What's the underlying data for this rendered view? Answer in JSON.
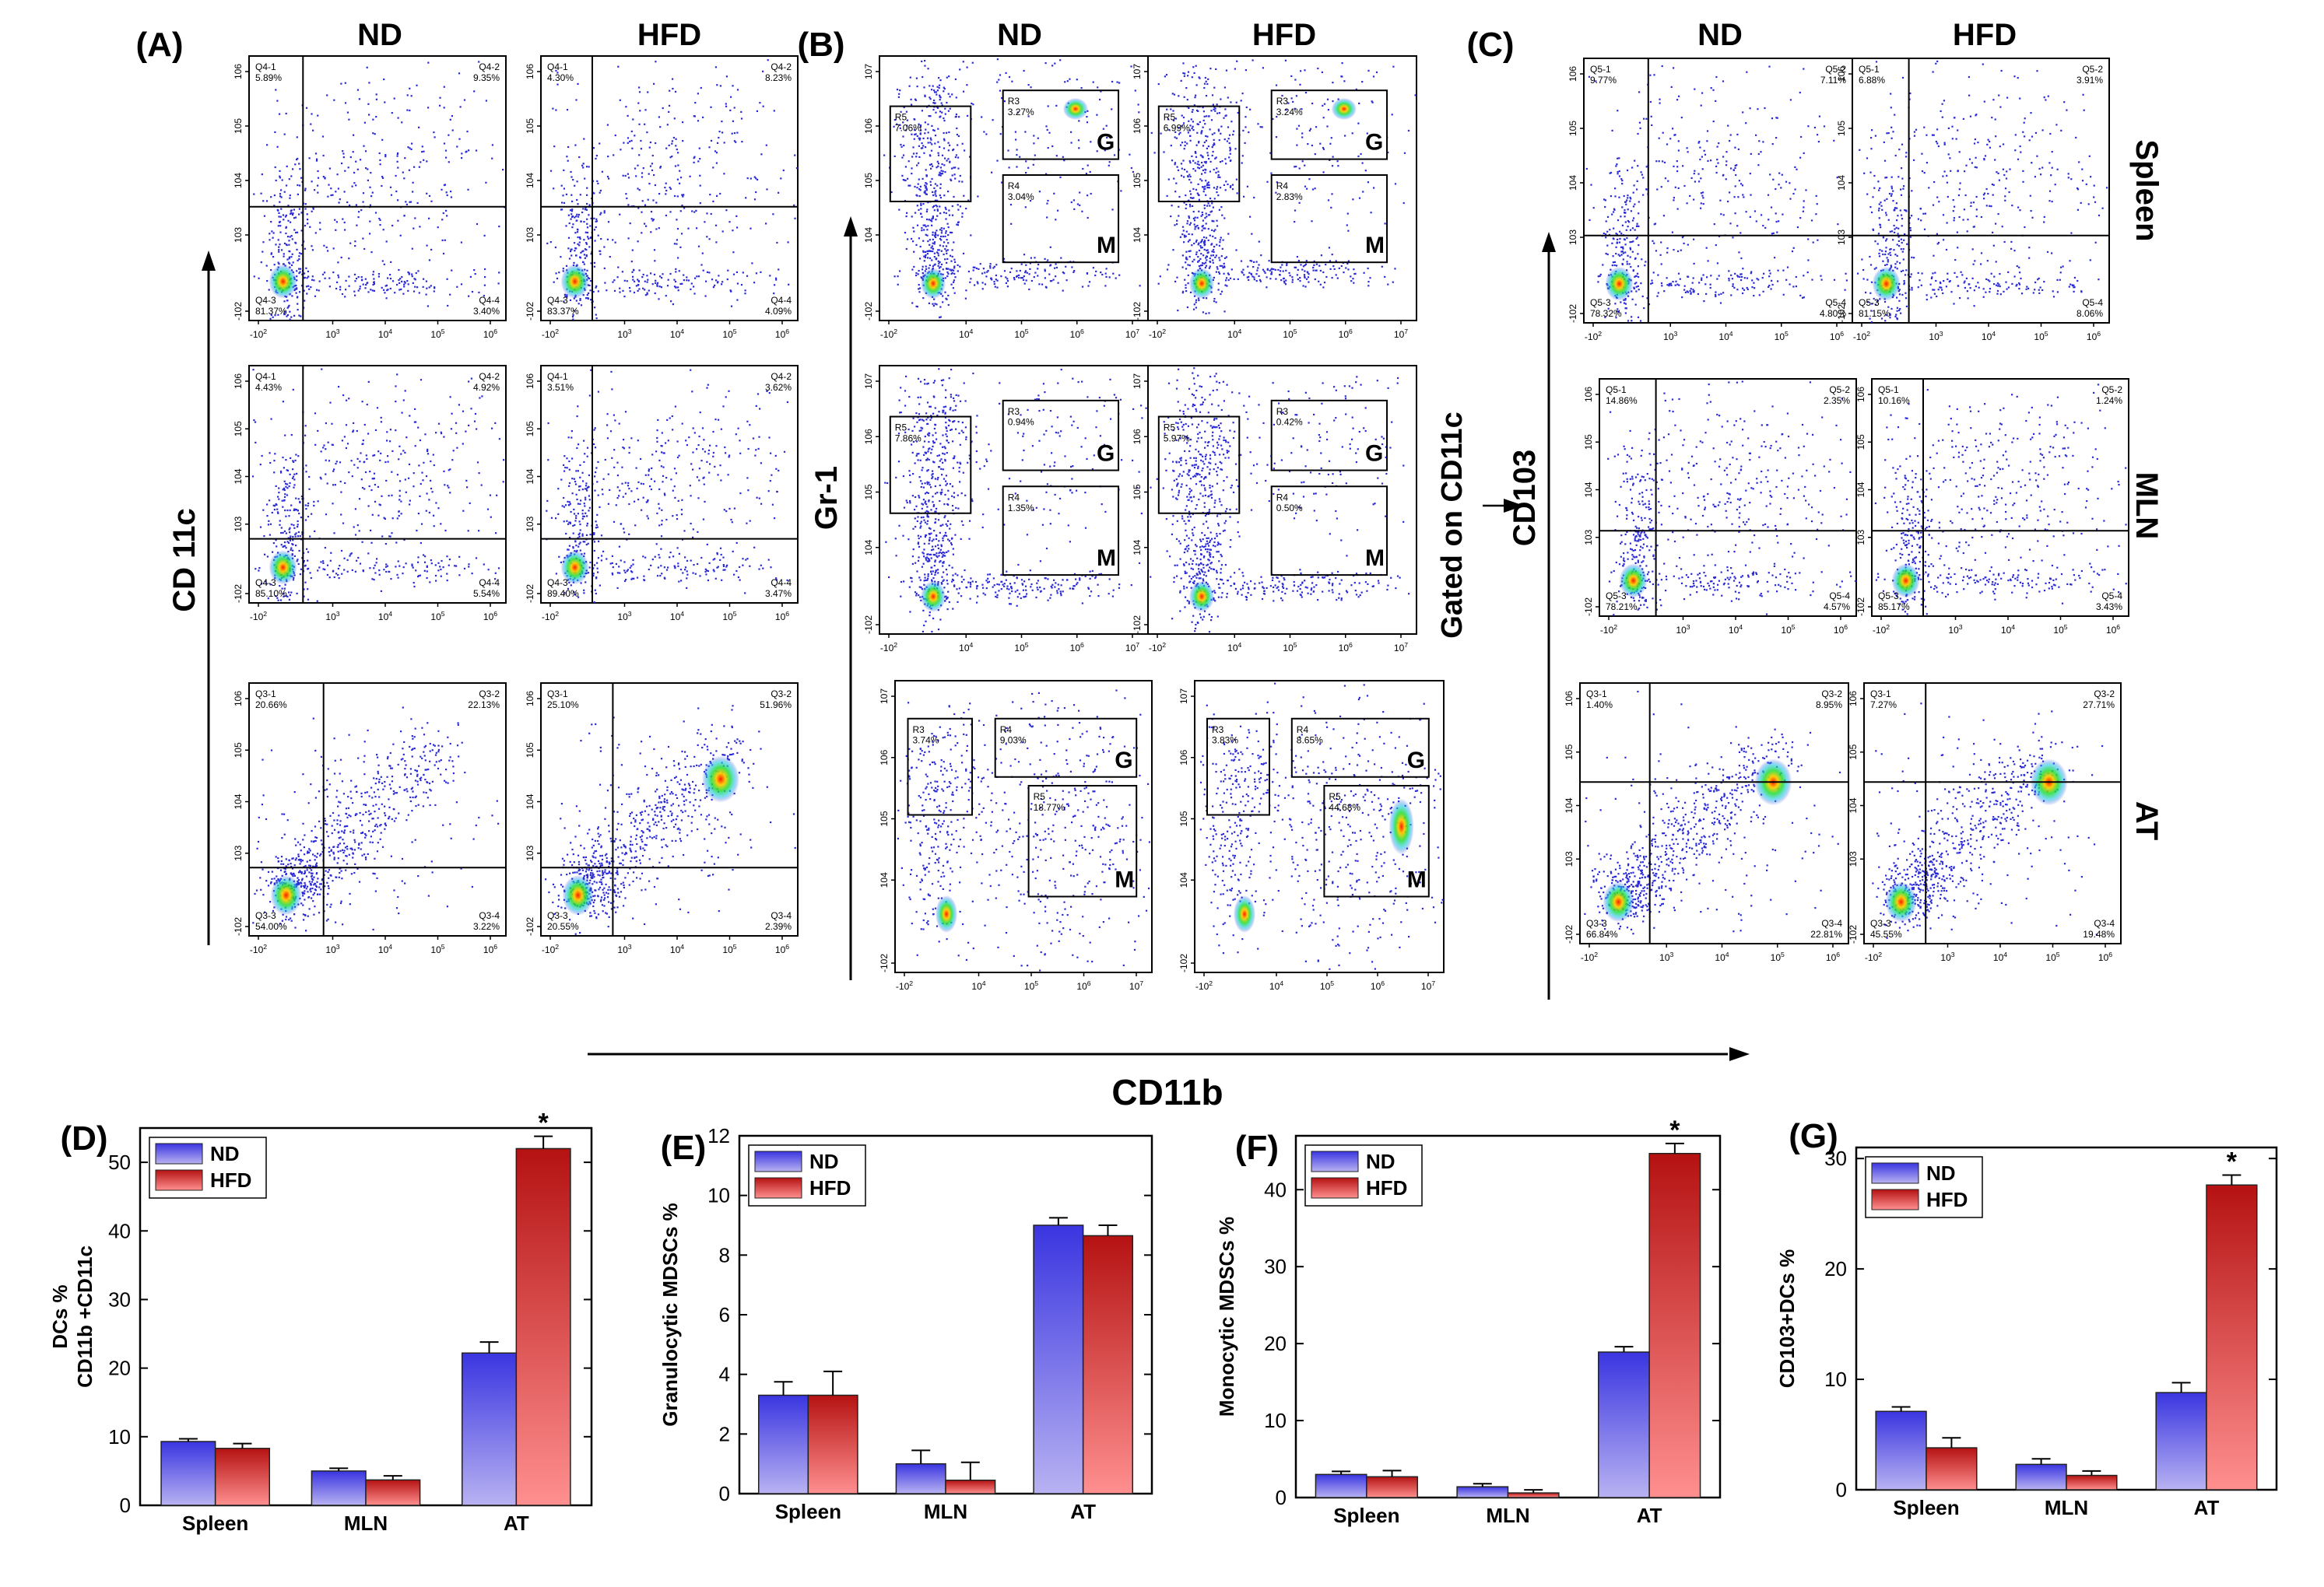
{
  "figure": {
    "col_nd": "ND",
    "col_hfd": "HFD",
    "bottom_axis_label": "CD11b",
    "gated_label": "Gated on CD11c",
    "colors": {
      "nd_top": "#3a35e0",
      "nd_bottom": "#b8b2f2",
      "hfd_top": "#b51212",
      "hfd_bottom": "#ff8f8f",
      "dots": "#2a2ad8",
      "gate": "#000000"
    }
  },
  "panels": {
    "A": {
      "label": "(A)",
      "y_axis": "CD 11c"
    },
    "B": {
      "label": "(B)",
      "y_axis": "Gr-1"
    },
    "C": {
      "label": "(C)",
      "y_axis": "CD103",
      "row_labels": [
        "Spleen",
        "MLN",
        "AT"
      ]
    }
  },
  "flow_plots": {
    "A": [
      {
        "nd": {
          "q1": "Q4-1\n5.89%",
          "q2": "Q4-2\n9.35%",
          "q3": "Q4-3\n81.37%",
          "q4": "Q4-4\n3.40%"
        },
        "hfd": {
          "q1": "Q4-1\n4.30%",
          "q2": "Q4-2\n8.23%",
          "q3": "Q4-3\n83.37%",
          "q4": "Q4-4\n4.09%"
        }
      },
      {
        "nd": {
          "q1": "Q4-1\n4.43%",
          "q2": "Q4-2\n4.92%",
          "q3": "Q4-3\n85.10%",
          "q4": "Q4-4\n5.54%"
        },
        "hfd": {
          "q1": "Q4-1\n3.51%",
          "q2": "Q4-2\n3.62%",
          "q3": "Q4-3\n89.40%",
          "q4": "Q4-4\n3.47%"
        }
      },
      {
        "nd": {
          "q1": "Q3-1\n20.66%",
          "q2": "Q3-2\n22.13%",
          "q3": "Q3-3\n54.00%",
          "q4": "Q3-4\n3.22%"
        },
        "hfd": {
          "q1": "Q3-1\n25.10%",
          "q2": "Q3-2\n51.96%",
          "q3": "Q3-3\n20.55%",
          "q4": "Q3-4\n2.39%"
        }
      }
    ],
    "B": [
      {
        "nd": {
          "r5": "R5\n7.06%",
          "r3": "R3\n3.27%",
          "r4": "R4\n3.04%"
        },
        "hfd": {
          "r5": "R5\n6.99%",
          "r3": "R3\n3.24%",
          "r4": "R4\n2.83%"
        }
      },
      {
        "nd": {
          "r5": "R5\n7.86%",
          "r3": "R3\n0.94%",
          "r4": "R4\n1.35%"
        },
        "hfd": {
          "r5": "R5\n5.97%",
          "r3": "R3\n0.42%",
          "r4": "R4\n0.50%"
        }
      },
      {
        "nd": {
          "r3": "R3\n3.74%",
          "r4": "R4\n9.03%",
          "r5": "R5\n18.77%"
        },
        "hfd": {
          "r3": "R3\n3.83%",
          "r4": "R4\n8.65%",
          "r5": "R5\n44.68%"
        }
      }
    ],
    "B_gate_letters": {
      "g": "G",
      "m": "M"
    },
    "C": [
      {
        "nd": {
          "q1": "Q5-1\n9.77%",
          "q2": "Q5-2\n7.11%",
          "q3": "Q5-3\n78.32%",
          "q4": "Q5-4\n4.80%"
        },
        "hfd": {
          "q1": "Q5-1\n6.88%",
          "q2": "Q5-2\n3.91%",
          "q3": "Q5-3\n81.15%",
          "q4": "Q5-4\n8.06%"
        }
      },
      {
        "nd": {
          "q1": "Q5-1\n14.86%",
          "q2": "Q5-2\n2.35%",
          "q3": "Q5-3\n78.21%",
          "q4": "Q5-4\n4.57%"
        },
        "hfd": {
          "q1": "Q5-1\n10.16%",
          "q2": "Q5-2\n1.24%",
          "q3": "Q5-3\n85.17%",
          "q4": "Q5-4\n3.43%"
        }
      },
      {
        "nd": {
          "q1": "Q3-1\n1.40%",
          "q2": "Q3-2\n8.95%",
          "q3": "Q3-3\n66.84%",
          "q4": "Q3-4\n22.81%"
        },
        "hfd": {
          "q1": "Q3-1\n7.27%",
          "q2": "Q3-2\n27.71%",
          "q3": "Q3-3\n45.55%",
          "q4": "Q3-4\n19.48%"
        }
      }
    ]
  },
  "chart_data": [
    {
      "type": "bar",
      "panel": "(D)",
      "categories": [
        "Spleen",
        "MLN",
        "AT"
      ],
      "series": [
        {
          "name": "ND",
          "values": [
            9.3,
            5.0,
            22.2
          ],
          "errors": [
            0.4,
            0.4,
            1.6
          ]
        },
        {
          "name": "HFD",
          "values": [
            8.3,
            3.7,
            52.0
          ],
          "errors": [
            0.7,
            0.6,
            1.8
          ]
        }
      ],
      "ylabel": "DCs %\nCD11b +CD11c",
      "xlabel": "",
      "ylim": [
        0,
        55
      ],
      "yticks": [
        0,
        10,
        20,
        30,
        40,
        50
      ],
      "significance": [
        "",
        "",
        "*"
      ],
      "legend": "top-left"
    },
    {
      "type": "bar",
      "panel": "(E)",
      "categories": [
        "Spleen",
        "MLN",
        "AT"
      ],
      "series": [
        {
          "name": "ND",
          "values": [
            3.3,
            1.0,
            9.0
          ],
          "errors": [
            0.45,
            0.45,
            0.25
          ]
        },
        {
          "name": "HFD",
          "values": [
            3.3,
            0.45,
            8.65
          ],
          "errors": [
            0.8,
            0.6,
            0.35
          ]
        }
      ],
      "ylabel": "Granulocytic MDSCs %",
      "xlabel": "",
      "ylim": [
        0,
        12
      ],
      "yticks": [
        0,
        2,
        4,
        6,
        8,
        10,
        12
      ],
      "significance": [
        "",
        "",
        ""
      ],
      "legend": "top-left"
    },
    {
      "type": "bar",
      "panel": "(F)",
      "categories": [
        "Spleen",
        "MLN",
        "AT"
      ],
      "series": [
        {
          "name": "ND",
          "values": [
            3.0,
            1.4,
            18.9
          ],
          "errors": [
            0.4,
            0.4,
            0.7
          ]
        },
        {
          "name": "HFD",
          "values": [
            2.7,
            0.6,
            44.7
          ],
          "errors": [
            0.8,
            0.4,
            1.3
          ]
        }
      ],
      "ylabel": "Monocytic MDSCs %",
      "xlabel": "",
      "ylim": [
        0,
        47
      ],
      "yticks": [
        0,
        10,
        20,
        30,
        40
      ],
      "significance": [
        "",
        "",
        "*"
      ],
      "legend": "top-left"
    },
    {
      "type": "bar",
      "panel": "(G)",
      "categories": [
        "Spleen",
        "MLN",
        "AT"
      ],
      "series": [
        {
          "name": "ND",
          "values": [
            7.1,
            2.3,
            8.8
          ],
          "errors": [
            0.4,
            0.5,
            0.9
          ]
        },
        {
          "name": "HFD",
          "values": [
            3.8,
            1.3,
            27.6
          ],
          "errors": [
            0.9,
            0.4,
            0.9
          ]
        }
      ],
      "ylabel": "CD103+DCs %",
      "xlabel": "",
      "ylim": [
        0,
        31
      ],
      "yticks": [
        0,
        10,
        20,
        30
      ],
      "significance": [
        "",
        "",
        "*"
      ],
      "legend": "top-left"
    }
  ]
}
